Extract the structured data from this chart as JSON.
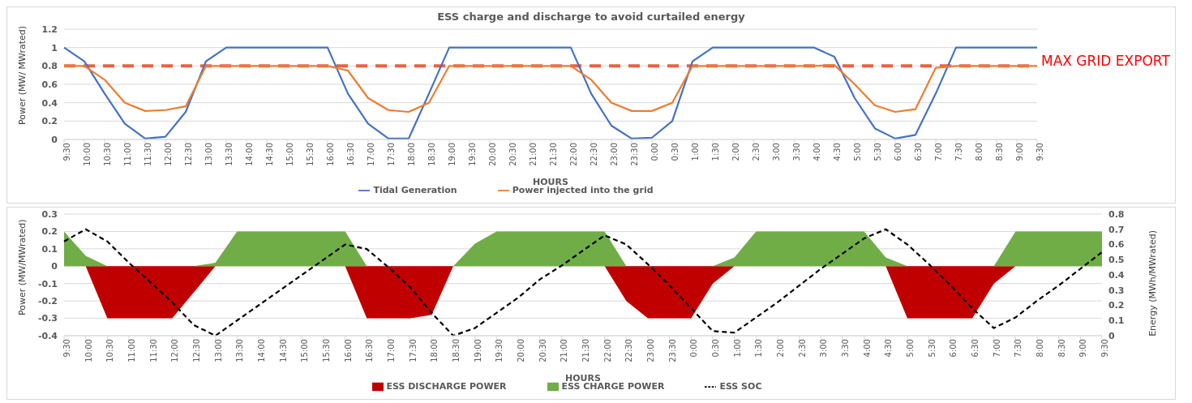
{
  "chart_data": [
    {
      "type": "line",
      "title": "ESS charge and discharge to avoid curtailed energy",
      "xlabel": "HOURS",
      "ylabel": "Power (MW/ MWrated)",
      "categories": [
        "9:30",
        "10:00",
        "10:30",
        "11:00",
        "11:30",
        "12:00",
        "12:30",
        "13:00",
        "13:30",
        "14:00",
        "14:30",
        "15:00",
        "15:30",
        "16:00",
        "16:30",
        "17:00",
        "17:30",
        "18:00",
        "18:30",
        "19:00",
        "19:30",
        "20:00",
        "20:30",
        "21:00",
        "21:30",
        "22:00",
        "22:30",
        "23:00",
        "23:30",
        "0:00",
        "0:30",
        "1:00",
        "1:30",
        "2:00",
        "2:30",
        "3:00",
        "3:30",
        "4:00",
        "4:30",
        "5:00",
        "5:30",
        "6:00",
        "6:30",
        "7:00",
        "7:30",
        "8:00",
        "8:30",
        "9:00",
        "9:30"
      ],
      "series": [
        {
          "name": "Tidal Generation",
          "color": "#4472c4",
          "values": [
            1,
            0.85,
            0.5,
            0.17,
            0.01,
            0.03,
            0.3,
            0.85,
            1,
            1,
            1,
            1,
            1,
            1,
            0.5,
            0.17,
            0.01,
            0.01,
            0.5,
            1,
            1,
            1,
            1,
            1,
            1,
            1,
            0.5,
            0.15,
            0.01,
            0.02,
            0.2,
            0.85,
            1,
            1,
            1,
            1,
            1,
            1,
            0.9,
            0.45,
            0.12,
            0.01,
            0.05,
            0.5,
            1,
            1,
            1,
            1,
            1
          ]
        },
        {
          "name": "Power injected into the grid",
          "color": "#ed7d31",
          "values": [
            0.8,
            0.8,
            0.65,
            0.4,
            0.31,
            0.32,
            0.36,
            0.8,
            0.8,
            0.8,
            0.8,
            0.8,
            0.8,
            0.8,
            0.75,
            0.45,
            0.32,
            0.3,
            0.4,
            0.8,
            0.8,
            0.8,
            0.8,
            0.8,
            0.8,
            0.8,
            0.65,
            0.4,
            0.31,
            0.31,
            0.4,
            0.8,
            0.8,
            0.8,
            0.8,
            0.8,
            0.8,
            0.8,
            0.81,
            0.6,
            0.37,
            0.3,
            0.33,
            0.78,
            0.8,
            0.8,
            0.8,
            0.8,
            0.8
          ]
        }
      ],
      "ylim": [
        0,
        1.2
      ],
      "yticks": [
        0,
        0.2,
        0.4,
        0.6,
        0.8,
        1,
        1.2
      ],
      "grid": "y",
      "legend": "bottom",
      "ref_lines": [
        {
          "axis": "y",
          "value": 0.8,
          "label": "MAX GRID EXPORT",
          "color": "#ee6041",
          "line_style": "dashed"
        }
      ]
    },
    {
      "type": "area",
      "xlabel": "HOURS",
      "ylabel": "Power (MW/MWrated)",
      "y2label": "Energy (MWh/MWrated)",
      "categories": [
        "9:30",
        "10:00",
        "10:30",
        "11:00",
        "11:30",
        "12:00",
        "12:30",
        "13:00",
        "13:30",
        "14:00",
        "14:30",
        "15:00",
        "15:30",
        "16:00",
        "16:30",
        "17:00",
        "17:30",
        "18:00",
        "18:30",
        "19:00",
        "19:30",
        "20:00",
        "20:30",
        "21:00",
        "21:30",
        "22:00",
        "22:30",
        "23:00",
        "23:30",
        "0:00",
        "0:30",
        "1:00",
        "1:30",
        "2:00",
        "2:30",
        "3:00",
        "3:30",
        "4:00",
        "4:30",
        "5:00",
        "5:30",
        "6:00",
        "6:30",
        "7:00",
        "7:30",
        "8:00",
        "8:30",
        "9:00",
        "9:30"
      ],
      "series": [
        {
          "name": "ESS DISCHARGE POWER",
          "color": "#c00000",
          "values": [
            0,
            0,
            -0.3,
            -0.3,
            -0.3,
            -0.3,
            -0.15,
            0,
            0,
            0,
            0,
            0,
            0,
            0,
            -0.3,
            -0.3,
            -0.3,
            -0.28,
            0,
            0,
            0,
            0,
            0,
            0,
            0,
            0,
            -0.2,
            -0.3,
            -0.3,
            -0.3,
            -0.1,
            0,
            0,
            0,
            0,
            0,
            0,
            0,
            0,
            -0.3,
            -0.3,
            -0.3,
            -0.3,
            -0.1,
            0,
            0,
            0,
            0,
            0
          ]
        },
        {
          "name": "ESS CHARGE POWER",
          "color": "#70ad47",
          "values": [
            0.2,
            0.06,
            0,
            0,
            0,
            0,
            0,
            0.02,
            0.2,
            0.2,
            0.2,
            0.2,
            0.2,
            0.2,
            0,
            0,
            0,
            0,
            0,
            0.13,
            0.2,
            0.2,
            0.2,
            0.2,
            0.2,
            0.2,
            0,
            0,
            0,
            0,
            0,
            0.05,
            0.2,
            0.2,
            0.2,
            0.2,
            0.2,
            0.2,
            0.05,
            0,
            0,
            0,
            0,
            0,
            0.2,
            0.2,
            0.2,
            0.2,
            0.2
          ]
        },
        {
          "name": "ESS SOC",
          "type": "line",
          "axis": "y2",
          "color": "#000000",
          "line_style": "dashed",
          "values": [
            0.62,
            0.7,
            0.62,
            0.48,
            0.35,
            0.22,
            0.07,
            0,
            0.1,
            0.2,
            0.3,
            0.4,
            0.5,
            0.6,
            0.57,
            0.45,
            0.32,
            0.15,
            0,
            0.05,
            0.15,
            0.25,
            0.37,
            0.46,
            0.56,
            0.66,
            0.6,
            0.47,
            0.33,
            0.18,
            0.03,
            0.02,
            0.12,
            0.22,
            0.33,
            0.44,
            0.54,
            0.64,
            0.7,
            0.6,
            0.47,
            0.33,
            0.18,
            0.05,
            0.12,
            0.23,
            0.33,
            0.44,
            0.55
          ]
        }
      ],
      "ylim": [
        -0.4,
        0.3
      ],
      "yticks": [
        -0.4,
        -0.3,
        -0.2,
        -0.1,
        0,
        0.1,
        0.2,
        0.3
      ],
      "y2lim": [
        0,
        0.8
      ],
      "y2ticks": [
        0,
        0.1,
        0.2,
        0.3,
        0.4,
        0.5,
        0.6,
        0.7,
        0.8
      ],
      "grid": "y",
      "legend": "bottom"
    }
  ]
}
